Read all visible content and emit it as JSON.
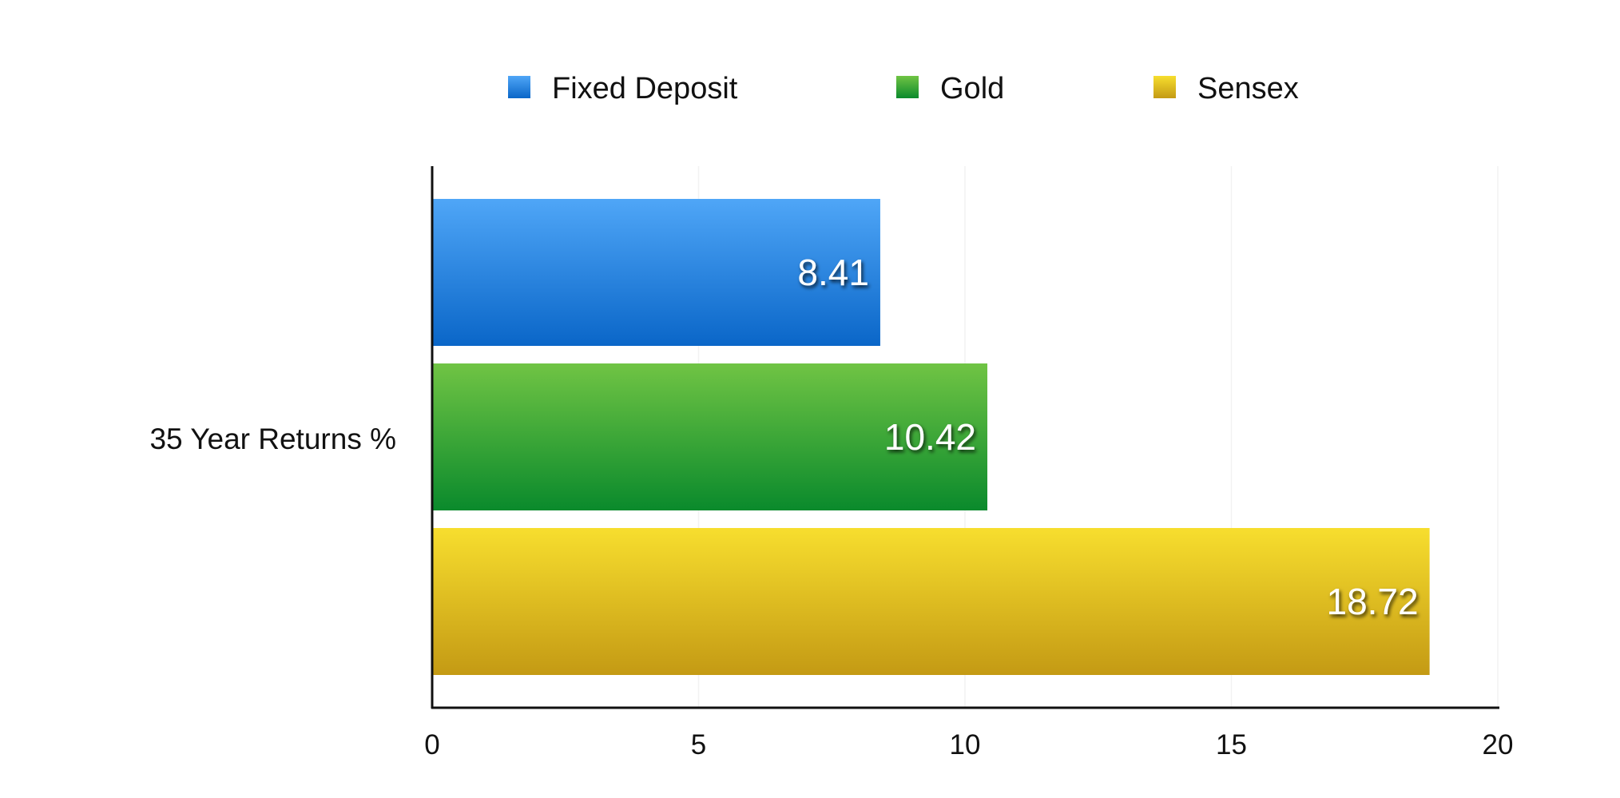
{
  "chart_data": {
    "type": "bar",
    "orientation": "horizontal",
    "categories": [
      "35 Year Returns %"
    ],
    "series": [
      {
        "name": "Fixed Deposit",
        "values": [
          8.41
        ],
        "color": "#2A86E0"
      },
      {
        "name": "Gold",
        "values": [
          10.42
        ],
        "color": "#2EA13A"
      },
      {
        "name": "Sensex",
        "values": [
          18.72
        ],
        "color": "#E2C21C"
      }
    ],
    "data_labels": [
      "8.41",
      "10.42",
      "18.72"
    ],
    "title": "",
    "xlabel": "",
    "ylabel": "",
    "xlim": [
      0,
      20
    ],
    "x_ticks": [
      0,
      5,
      10,
      15,
      20
    ],
    "grid": true,
    "legend_position": "top"
  }
}
